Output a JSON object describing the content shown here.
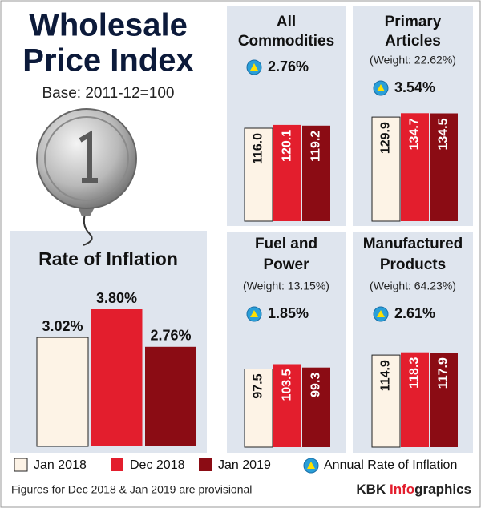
{
  "title": [
    "Wholesale",
    "Price Index"
  ],
  "base": "Base: 2011-12=100",
  "legend": {
    "items": [
      {
        "label": "Jan 2018",
        "color": "#fdf3e6"
      },
      {
        "label": "Dec 2018",
        "color": "#e31e2d"
      },
      {
        "label": "Jan 2019",
        "color": "#8b0c14"
      }
    ],
    "rate_label": "Annual Rate of Inflation"
  },
  "footnote": "Figures for Dec 2018 & Jan 2019 are provisional",
  "credit": {
    "prefix": "KBK",
    "highlight": "Info",
    "rest": "graphics"
  },
  "chart_data": [
    {
      "type": "bar",
      "title": [
        "Rate of Inflation"
      ],
      "values": [
        3.02,
        3.8,
        2.76
      ],
      "value_labels": [
        "3.02%",
        "3.80%",
        "2.76%"
      ]
    },
    {
      "type": "bar",
      "title": [
        "All",
        "Commodities"
      ],
      "rate": 2.76,
      "rate_label": "2.76%",
      "values": [
        116.0,
        120.1,
        119.2
      ],
      "value_labels": [
        "116.0",
        "120.1",
        "119.2"
      ]
    },
    {
      "type": "bar",
      "title": [
        "Primary",
        "Articles"
      ],
      "subtitle": "(Weight: 22.62%)",
      "rate": 3.54,
      "rate_label": "3.54%",
      "values": [
        129.9,
        134.7,
        134.5
      ],
      "value_labels": [
        "129.9",
        "134.7",
        "134.5"
      ]
    },
    {
      "type": "bar",
      "title": [
        "Fuel and",
        "Power"
      ],
      "subtitle": "(Weight: 13.15%)",
      "rate": 1.85,
      "rate_label": "1.85%",
      "values": [
        97.5,
        103.5,
        99.3
      ],
      "value_labels": [
        "97.5",
        "103.5",
        "99.3"
      ]
    },
    {
      "type": "bar",
      "title": [
        "Manufactured",
        "Products"
      ],
      "subtitle": "(Weight: 64.23%)",
      "rate": 2.61,
      "rate_label": "2.61%",
      "values": [
        114.9,
        118.3,
        117.9
      ],
      "value_labels": [
        "114.9",
        "118.3",
        "117.9"
      ]
    }
  ]
}
